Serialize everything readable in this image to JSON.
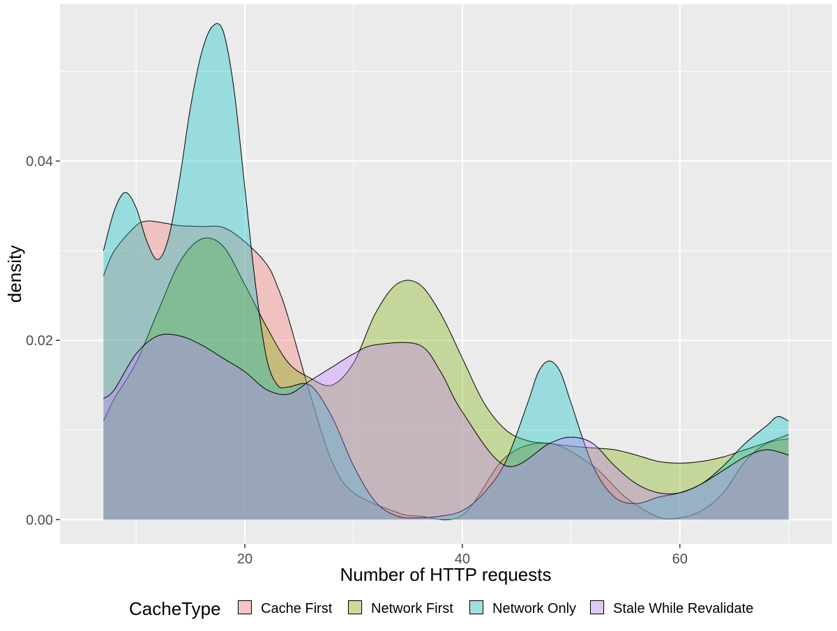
{
  "chart_data": {
    "type": "area",
    "subtype": "density",
    "xlabel": "Number of HTTP requests",
    "ylabel": "density",
    "xlim": [
      3,
      74
    ],
    "ylim": [
      -0.0027,
      0.0575
    ],
    "x_ticks": [
      20,
      40,
      60
    ],
    "x_tick_labels": [
      "20",
      "40",
      "60"
    ],
    "y_ticks": [
      0.0,
      0.02,
      0.04
    ],
    "y_tick_labels": [
      "0.00",
      "0.02",
      "0.04"
    ],
    "grid": true,
    "legend": {
      "title": "CacheType",
      "position": "bottom"
    },
    "colors": {
      "panel_bg": "#ebebeb",
      "grid": "#ffffff",
      "outline": "#000000"
    },
    "series": [
      {
        "name": "Cache First",
        "color": "#F8766D",
        "x": [
          7,
          8,
          10,
          11,
          12,
          13,
          14,
          16,
          18,
          20,
          22,
          23,
          24,
          26,
          28,
          30,
          34,
          36,
          40,
          44,
          48,
          52,
          55,
          58,
          60,
          62,
          64,
          66,
          68,
          70
        ],
        "y": [
          0.0272,
          0.03,
          0.0328,
          0.0333,
          0.0332,
          0.033,
          0.0328,
          0.0327,
          0.0326,
          0.031,
          0.0285,
          0.026,
          0.0225,
          0.014,
          0.0065,
          0.003,
          0.0008,
          0.0004,
          0.0005,
          0.007,
          0.0085,
          0.006,
          0.0025,
          0.0003,
          0.0002,
          0.001,
          0.003,
          0.0065,
          0.0085,
          0.009
        ]
      },
      {
        "name": "Network First",
        "color": "#7CAE00",
        "x": [
          7,
          8,
          10,
          12,
          14,
          16,
          18,
          20,
          22,
          24,
          26,
          28,
          30,
          32,
          34,
          36,
          38,
          40,
          42,
          44,
          46,
          48,
          50,
          52,
          54,
          56,
          58,
          60,
          62,
          64,
          66,
          68,
          70
        ],
        "y": [
          0.011,
          0.0135,
          0.0175,
          0.0232,
          0.0287,
          0.0313,
          0.0305,
          0.0262,
          0.0215,
          0.0175,
          0.0158,
          0.015,
          0.0175,
          0.023,
          0.0263,
          0.0263,
          0.023,
          0.018,
          0.013,
          0.01,
          0.0088,
          0.0085,
          0.0082,
          0.008,
          0.0078,
          0.0072,
          0.0065,
          0.0063,
          0.0065,
          0.007,
          0.0078,
          0.0086,
          0.0095
        ]
      },
      {
        "name": "Network Only",
        "color": "#00BFC4",
        "x": [
          7,
          8,
          9,
          10,
          11,
          12,
          13,
          14,
          15,
          16,
          17,
          18,
          19,
          20,
          21,
          22,
          23,
          24,
          26,
          28,
          30,
          32,
          34,
          36,
          38,
          40,
          42,
          44,
          46,
          47,
          48,
          49,
          50,
          52,
          54,
          56,
          58,
          60,
          62,
          64,
          66,
          68,
          69,
          70
        ],
        "y": [
          0.03,
          0.0345,
          0.0365,
          0.0348,
          0.031,
          0.029,
          0.0315,
          0.038,
          0.046,
          0.052,
          0.055,
          0.0545,
          0.048,
          0.037,
          0.026,
          0.018,
          0.015,
          0.0148,
          0.015,
          0.0115,
          0.006,
          0.002,
          0.0004,
          0.0002,
          0.0004,
          0.001,
          0.003,
          0.0065,
          0.013,
          0.0165,
          0.0177,
          0.0165,
          0.013,
          0.006,
          0.0025,
          0.0018,
          0.0025,
          0.003,
          0.004,
          0.006,
          0.0085,
          0.0105,
          0.0115,
          0.011
        ]
      },
      {
        "name": "Stale While Revalidate",
        "color": "#C77CFF",
        "x": [
          7,
          8,
          10,
          12,
          14,
          16,
          18,
          20,
          22,
          24,
          26,
          28,
          30,
          32,
          36,
          38,
          40,
          44,
          48,
          50,
          52,
          54,
          56,
          58,
          60,
          62,
          64,
          66,
          68,
          70
        ],
        "y": [
          0.0135,
          0.0145,
          0.0185,
          0.0205,
          0.0205,
          0.0195,
          0.018,
          0.0165,
          0.0145,
          0.014,
          0.0155,
          0.017,
          0.0185,
          0.0195,
          0.0195,
          0.0165,
          0.012,
          0.006,
          0.0085,
          0.0092,
          0.0085,
          0.006,
          0.004,
          0.003,
          0.003,
          0.004,
          0.0055,
          0.007,
          0.0078,
          0.0072
        ]
      }
    ]
  }
}
